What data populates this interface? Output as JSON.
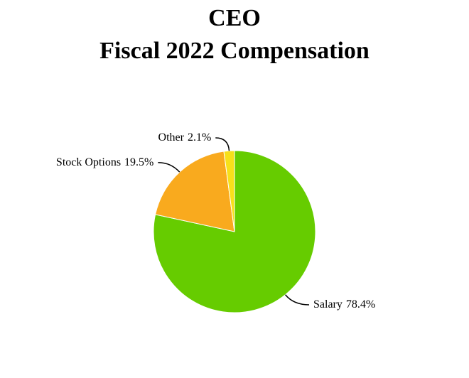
{
  "chart_data": {
    "type": "pie",
    "title": "CEO",
    "subtitle": "Fiscal 2022 Compensation",
    "categories": [
      "Salary",
      "Stock Options",
      "Other"
    ],
    "values": [
      78.4,
      19.5,
      2.1
    ],
    "value_labels": [
      "78.4%",
      "19.5%",
      "2.1%"
    ],
    "colors": [
      "#66cc00",
      "#f9aa1e",
      "#f7e01a"
    ]
  }
}
